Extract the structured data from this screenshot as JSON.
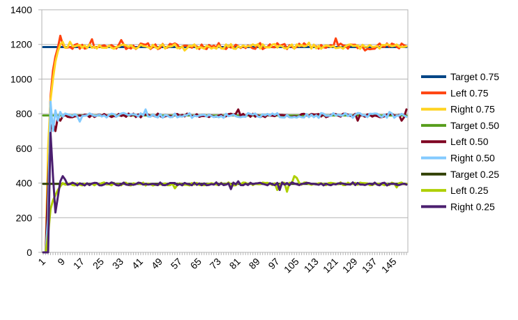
{
  "chart_data": {
    "type": "line",
    "title": "",
    "xlabel": "",
    "ylabel": "",
    "x_range": [
      1,
      150
    ],
    "ylim": [
      0,
      1400
    ],
    "y_ticks": [
      0,
      200,
      400,
      600,
      800,
      1000,
      1200,
      1400
    ],
    "x_ticks": [
      1,
      9,
      17,
      25,
      33,
      41,
      49,
      57,
      65,
      73,
      81,
      89,
      97,
      105,
      113,
      121,
      129,
      137,
      145
    ],
    "grid": "horizontal",
    "legend_position": "right",
    "series": [
      {
        "name": "Target 0.75",
        "color": "#004586",
        "kind": "target",
        "value": 1185
      },
      {
        "name": "Left 0.75",
        "color": "#ff420e",
        "kind": "noisy",
        "ramp": [
          [
            1,
            0
          ],
          [
            2,
            0
          ],
          [
            3,
            500
          ],
          [
            4,
            900
          ],
          [
            5,
            1050
          ],
          [
            6,
            1130
          ],
          [
            7,
            1180
          ],
          [
            8,
            1250
          ],
          [
            9,
            1200
          ]
        ],
        "steady": 1190,
        "noise": 18,
        "spikes": [
          [
            8,
            1250
          ],
          [
            21,
            1230
          ],
          [
            33,
            1225
          ],
          [
            121,
            1235
          ],
          [
            133,
            1165
          ],
          [
            148,
            1205
          ]
        ],
        "seed": 11
      },
      {
        "name": "Right 0.75",
        "color": "#ffd320",
        "kind": "noisy",
        "ramp": [
          [
            1,
            0
          ],
          [
            2,
            0
          ],
          [
            3,
            600
          ],
          [
            4,
            880
          ],
          [
            5,
            1000
          ],
          [
            6,
            1100
          ],
          [
            7,
            1160
          ],
          [
            8,
            1200
          ],
          [
            9,
            1215
          ]
        ],
        "steady": 1188,
        "noise": 14,
        "spikes": [
          [
            12,
            1215
          ],
          [
            59,
            1165
          ],
          [
            110,
            1210
          ]
        ],
        "seed": 23
      },
      {
        "name": "Target 0.50",
        "color": "#579d1c",
        "kind": "target",
        "value": 790
      },
      {
        "name": "Left 0.50",
        "color": "#7e0021",
        "kind": "noisy",
        "ramp": [
          [
            1,
            0
          ],
          [
            2,
            0
          ],
          [
            3,
            400
          ],
          [
            4,
            710
          ],
          [
            5,
            750
          ],
          [
            6,
            700
          ],
          [
            7,
            780
          ],
          [
            8,
            760
          ]
        ],
        "steady": 790,
        "noise": 11,
        "spikes": [
          [
            81,
            825
          ],
          [
            130,
            760
          ],
          [
            148,
            760
          ],
          [
            150,
            825
          ]
        ],
        "seed": 37
      },
      {
        "name": "Right 0.50",
        "color": "#83caff",
        "kind": "noisy",
        "ramp": [
          [
            1,
            0
          ],
          [
            2,
            0
          ],
          [
            3,
            200
          ],
          [
            4,
            870
          ],
          [
            5,
            700
          ],
          [
            6,
            820
          ],
          [
            7,
            760
          ],
          [
            8,
            810
          ]
        ],
        "steady": 790,
        "noise": 14,
        "spikes": [
          [
            16,
            755
          ],
          [
            43,
            825
          ],
          [
            143,
            810
          ]
        ],
        "seed": 51
      },
      {
        "name": "Target 0.25",
        "color": "#314004",
        "kind": "target",
        "value": 395
      },
      {
        "name": "Left 0.25",
        "color": "#aecf00",
        "kind": "noisy",
        "ramp": [
          [
            1,
            0
          ],
          [
            2,
            0
          ],
          [
            3,
            100
          ],
          [
            4,
            250
          ],
          [
            5,
            300
          ],
          [
            6,
            330
          ],
          [
            7,
            360
          ],
          [
            8,
            380
          ],
          [
            9,
            400
          ]
        ],
        "steady": 395,
        "noise": 9,
        "spikes": [
          [
            55,
            370
          ],
          [
            97,
            360
          ],
          [
            101,
            350
          ],
          [
            104,
            440
          ],
          [
            105,
            430
          ],
          [
            146,
            375
          ]
        ],
        "seed": 67
      },
      {
        "name": "Right 0.25",
        "color": "#4b1f6f",
        "kind": "noisy",
        "ramp": [
          [
            1,
            0
          ],
          [
            2,
            0
          ],
          [
            3,
            0
          ],
          [
            4,
            690
          ],
          [
            5,
            440
          ],
          [
            6,
            230
          ],
          [
            7,
            320
          ],
          [
            8,
            410
          ],
          [
            9,
            440
          ],
          [
            10,
            420
          ]
        ],
        "steady": 395,
        "noise": 9,
        "spikes": [
          [
            78,
            365
          ],
          [
            81,
            410
          ],
          [
            98,
            360
          ]
        ],
        "seed": 79
      }
    ]
  }
}
